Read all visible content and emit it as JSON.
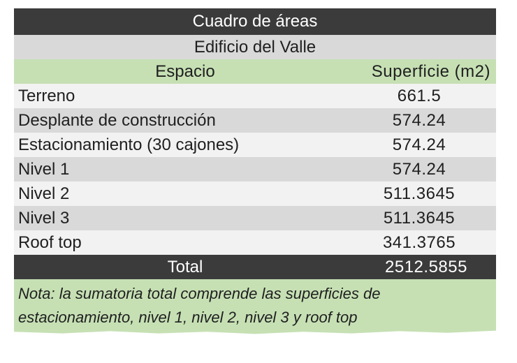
{
  "table": {
    "title": "Cuadro de áreas",
    "subtitle": "Edificio del Valle",
    "headers": {
      "space": "Espacio",
      "area": "Superficie (m2)"
    },
    "rows": [
      {
        "space": "Terreno",
        "area": "661.5"
      },
      {
        "space": "Desplante de construcción",
        "area": "574.24"
      },
      {
        "space": "Estacionamiento (30 cajones)",
        "area": "574.24"
      },
      {
        "space": "Nivel 1",
        "area": "574.24"
      },
      {
        "space": "Nivel 2",
        "area": "511.3645"
      },
      {
        "space": "Nivel 3",
        "area": "511.3645"
      },
      {
        "space": "Roof top",
        "area": "341.3765"
      }
    ],
    "total": {
      "label": "Total",
      "value": "2512.5855"
    },
    "note": "Nota: la sumatoria total comprende las superficies de estacionamiento, nivel 1, nivel 2, nivel 3 y roof top"
  },
  "colors": {
    "title_bg": "#3b3b3b",
    "subtitle_bg": "#d9d9d9",
    "header_bg": "#c6e0b4",
    "row_light": "#f2f2f2",
    "row_dark": "#d9d9d9",
    "note_bg": "#c6e0b4"
  }
}
